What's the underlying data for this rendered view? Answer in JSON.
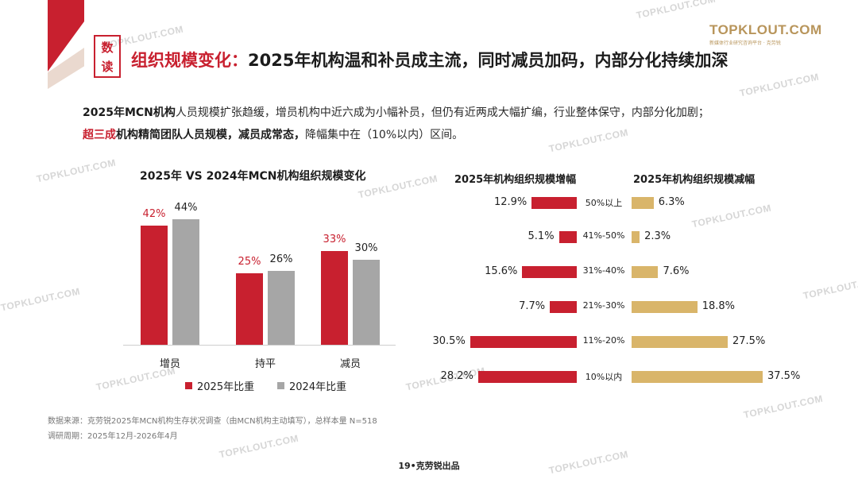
{
  "header": {
    "badge_line1": "数",
    "badge_line2": "读",
    "title_highlight": "组织规模变化：",
    "title_rest": "2025年机构温和补员成主流，同时减员加码，内部分化持续加深"
  },
  "logo": {
    "main": "TOPKLOUT.COM",
    "sub": "新媒体行业研究咨询平台 · 克劳锐"
  },
  "summary": {
    "line1_bold": "2025年MCN机构",
    "line1_rest": "人员规模扩张趋缓，增员机构中近六成为小幅补员，但仍有近两成大幅扩编，行业整体保守，内部分化加剧；",
    "line2_red": "超三成",
    "line2_bold": "机构精简团队人员规模，减员成常态，",
    "line2_rest": "降幅集中在（10%以内）区间。"
  },
  "watermark": "TOPKLOUT.COM",
  "colors": {
    "red": "#c8202f",
    "gray": "#a6a6a6",
    "gold": "#d9b56a"
  },
  "chart_data": [
    {
      "type": "bar",
      "title": "2025年 VS 2024年MCN机构组织规模变化",
      "categories": [
        "增员",
        "持平",
        "减员"
      ],
      "series": [
        {
          "name": "2025年比重",
          "values": [
            42,
            25,
            33
          ],
          "labels": [
            "42%",
            "25%",
            "33%"
          ]
        },
        {
          "name": "2024年比重",
          "values": [
            44,
            26,
            30
          ],
          "labels": [
            "44%",
            "26%",
            "30%"
          ]
        }
      ],
      "ylim": [
        0,
        48
      ],
      "legend_position": "bottom"
    },
    {
      "type": "bar",
      "orientation": "horizontal",
      "title": "2025年机构组织规模增幅",
      "categories": [
        "50%以上",
        "41%-50%",
        "31%-40%",
        "21%-30%",
        "11%-20%",
        "10%以内"
      ],
      "values": [
        12.9,
        5.1,
        15.6,
        7.7,
        30.5,
        28.2
      ],
      "labels": [
        "12.9%",
        "5.1%",
        "15.6%",
        "7.7%",
        "30.5%",
        "28.2%"
      ]
    },
    {
      "type": "bar",
      "orientation": "horizontal",
      "title": "2025年机构组织规模减幅",
      "categories": [
        "50%以上",
        "41%-50%",
        "31%-40%",
        "21%-30%",
        "11%-20%",
        "10%以内"
      ],
      "values": [
        6.3,
        2.3,
        7.6,
        18.8,
        27.5,
        37.5
      ],
      "labels": [
        "6.3%",
        "2.3%",
        "7.6%",
        "18.8%",
        "27.5%",
        "37.5%"
      ]
    }
  ],
  "footer": {
    "source": "数据来源：克劳锐2025年MCN机构生存状况调查（由MCN机构主动填写），总样本量 N=518",
    "period": "调研周期：2025年12月-2026年4月",
    "page": "19•克劳锐出品"
  }
}
